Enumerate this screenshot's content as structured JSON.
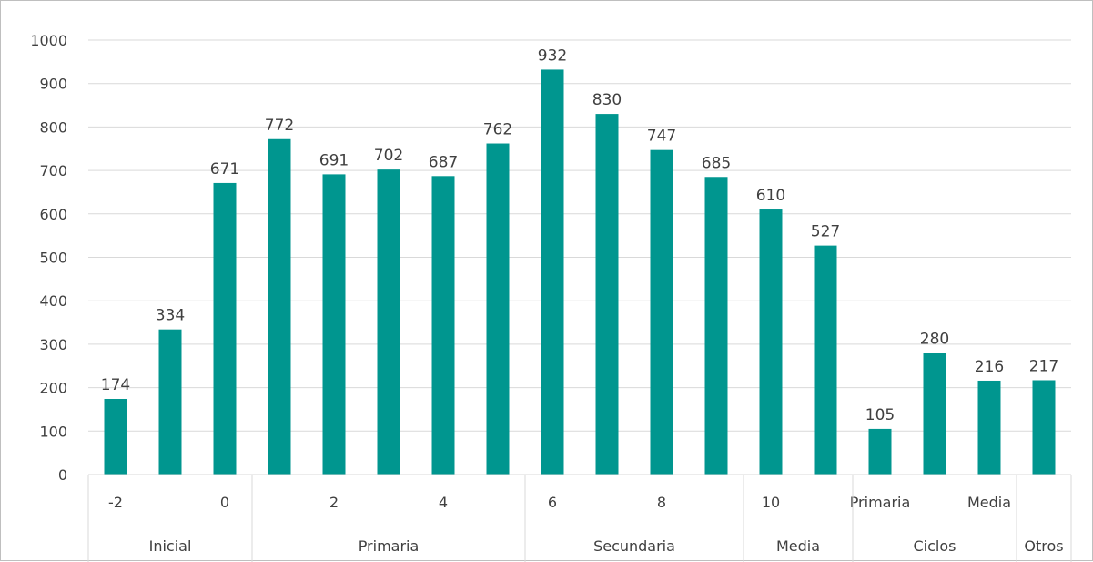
{
  "chart_data": {
    "type": "bar",
    "ylim": [
      0,
      1000
    ],
    "yticks": [
      0,
      100,
      200,
      300,
      400,
      500,
      600,
      700,
      800,
      900,
      1000
    ],
    "grid": true,
    "bar_color": "#00968F",
    "grid_color": "#D9D9D9",
    "text_color": "#404040",
    "categories": [
      "-2",
      "",
      "0",
      "",
      "2",
      "",
      "4",
      "",
      "6",
      "",
      "8",
      "",
      "10",
      "",
      "Primaria",
      "",
      "Media",
      ""
    ],
    "values": [
      174,
      334,
      671,
      772,
      691,
      702,
      687,
      762,
      932,
      830,
      747,
      685,
      610,
      527,
      105,
      280,
      216,
      217
    ],
    "groups": [
      {
        "label": "Inicial",
        "count": 3
      },
      {
        "label": "Primaria",
        "count": 5
      },
      {
        "label": "Secundaria",
        "count": 4
      },
      {
        "label": "Media",
        "count": 2
      },
      {
        "label": "Ciclos",
        "count": 3
      },
      {
        "label": "Otros",
        "count": 1
      }
    ]
  }
}
